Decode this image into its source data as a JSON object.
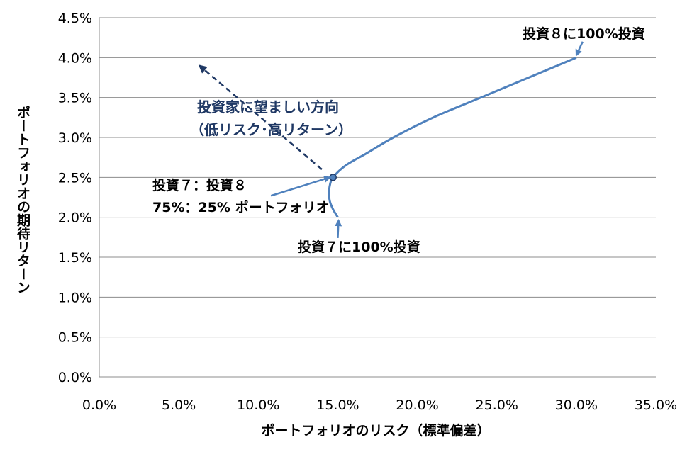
{
  "chart_data": {
    "type": "line",
    "xlabel": "ポートフォリオのリスク（標準偏差）",
    "ylabel": "ポートフォリオの期待リターン",
    "xlim": [
      0,
      35
    ],
    "ylim": [
      0,
      4.5
    ],
    "x_ticks": [
      "0.0%",
      "5.0%",
      "10.0%",
      "15.0%",
      "20.0%",
      "25.0%",
      "30.0%",
      "35.0%"
    ],
    "y_ticks": [
      "0.0%",
      "0.5%",
      "1.0%",
      "1.5%",
      "2.0%",
      "2.5%",
      "3.0%",
      "3.5%",
      "4.0%",
      "4.5%"
    ],
    "grid": "horizontal",
    "line_color": "#4F81BD",
    "arrow_color": "#1F3864",
    "series": [
      {
        "points": [
          {
            "x": 15.0,
            "y": 2.0
          },
          {
            "x": 14.7,
            "y": 2.1
          },
          {
            "x": 14.5,
            "y": 2.2
          },
          {
            "x": 14.45,
            "y": 2.3
          },
          {
            "x": 14.5,
            "y": 2.4
          },
          {
            "x": 14.7,
            "y": 2.5
          },
          {
            "x": 15.5,
            "y": 2.65
          },
          {
            "x": 16.8,
            "y": 2.8
          },
          {
            "x": 18.5,
            "y": 3.0
          },
          {
            "x": 21.0,
            "y": 3.25
          },
          {
            "x": 24.0,
            "y": 3.5
          },
          {
            "x": 27.0,
            "y": 3.75
          },
          {
            "x": 30.0,
            "y": 4.0
          }
        ]
      }
    ],
    "marker": {
      "x": 14.7,
      "y": 2.5
    },
    "annotations": {
      "inv8": "投資８に100%投資",
      "inv7": "投資７に100%投資",
      "mix_line1": "投資７：投資８",
      "mix_line2": "75%：25% ポートフォリオ",
      "dir_line1": "投資家に望ましい方向",
      "dir_line2": "（低リスク･高リターン）"
    }
  }
}
